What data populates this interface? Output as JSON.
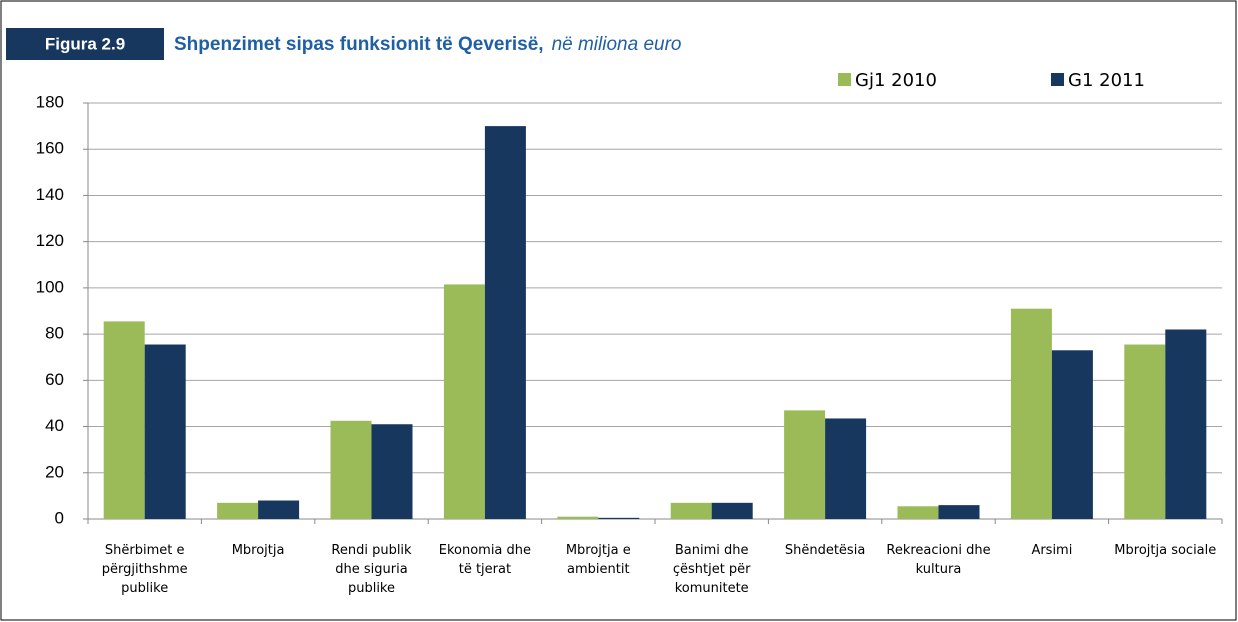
{
  "chart_data": {
    "type": "bar",
    "figure_label": "Figura 2.9",
    "title": "Shpenzimet sipas funksionit të Qeverisë,",
    "subtitle": "në miliona euro",
    "categories": [
      "Shërbimet e përgjithshme publike",
      "Mbrojtja",
      "Rendi publik dhe siguria publike",
      "Ekonomia dhe të tjerat",
      "Mbrojtja e ambientit",
      "Banimi dhe çështjet për komunitete",
      "Shëndetësia",
      "Rekreacioni dhe kultura",
      "Arsimi",
      "Mbrojtja sociale"
    ],
    "series": [
      {
        "name": "Gj1 2010",
        "color": "#9bbb59",
        "values": [
          85.5,
          7,
          42.5,
          101.5,
          1,
          7,
          47,
          5.5,
          91,
          75.5
        ]
      },
      {
        "name": "G1 2011",
        "color": "#17375e",
        "values": [
          75.5,
          8,
          41,
          170,
          0.5,
          7,
          43.5,
          6,
          73,
          82
        ]
      }
    ],
    "ylim": [
      0,
      180
    ],
    "yticks": [
      0,
      20,
      40,
      60,
      80,
      100,
      120,
      140,
      160,
      180
    ],
    "grid": true,
    "legend": "top-right"
  }
}
